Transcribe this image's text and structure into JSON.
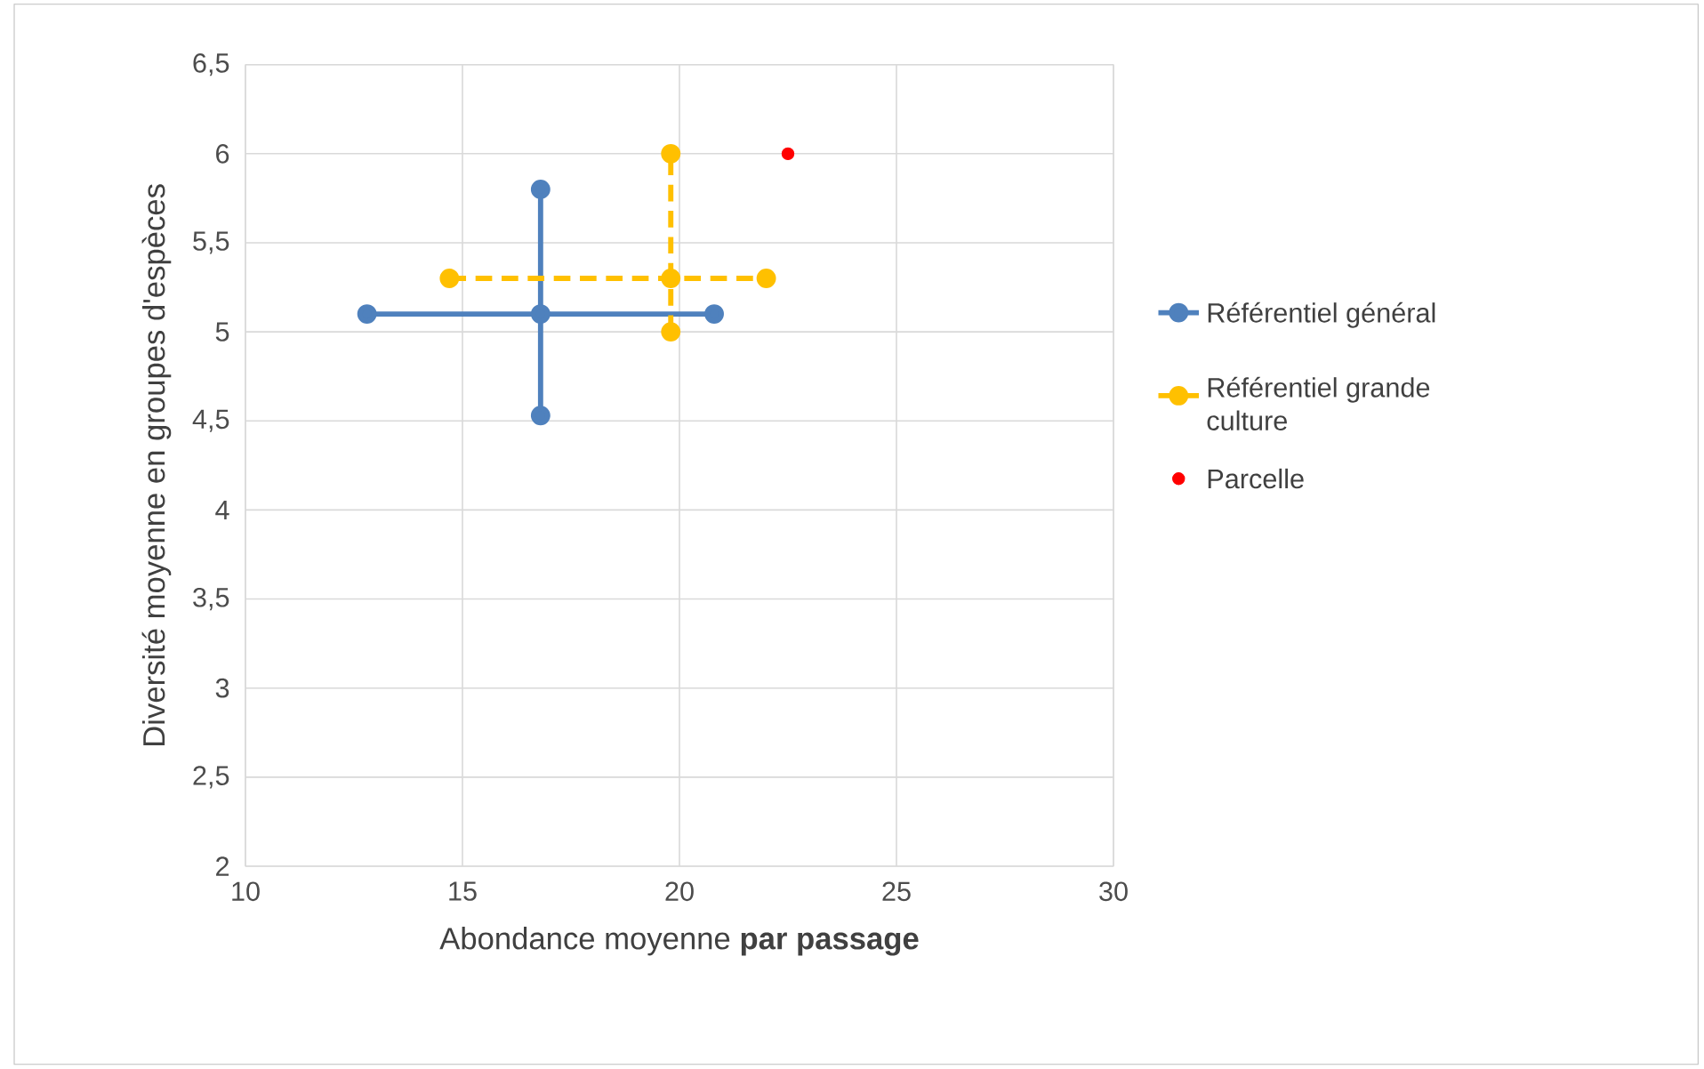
{
  "chart_data": {
    "type": "line",
    "xlabel": "Abondance moyenne **par passage**",
    "ylabel": "Diversité  moyenne en groupes d'espèces",
    "xlim": [
      10,
      30
    ],
    "xticks": [
      10,
      15,
      20,
      25,
      30
    ],
    "ylim": [
      2,
      6.5
    ],
    "yticks": [
      2,
      {
        "value": 2.5,
        "label": "2,5"
      },
      3,
      {
        "value": 3.5,
        "label": "3,5"
      },
      4,
      {
        "value": 4.5,
        "label": "4,5"
      },
      5,
      {
        "value": 5.5,
        "label": "5,5"
      },
      6,
      {
        "value": 6.5,
        "label": "6,5"
      }
    ],
    "grid": true,
    "legend": "right",
    "marker": "circle",
    "series": [
      {
        "name": "Référentiel général",
        "color": "#4f81bd",
        "line_style": "solid",
        "x": [
          12.8,
          16.8,
          20.8,
          null,
          16.8,
          16.8
        ],
        "values": [
          5.1,
          5.1,
          5.1,
          null,
          4.53,
          5.8
        ]
      },
      {
        "name": "Référentiel grande culture",
        "color": "#ffc000",
        "line_style": "dashed",
        "x": [
          14.7,
          19.8,
          22.0,
          null,
          19.8,
          19.8
        ],
        "values": [
          5.3,
          5.3,
          5.3,
          null,
          5.0,
          6.0
        ]
      },
      {
        "name": "Parcelle",
        "type": "scatter",
        "color": "#ff0000",
        "x": [
          22.5
        ],
        "values": [
          6.0
        ]
      }
    ]
  }
}
